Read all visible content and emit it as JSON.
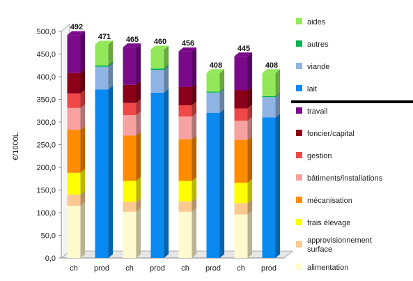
{
  "chart_data": {
    "type": "bar",
    "stacked": true,
    "three_d": true,
    "ylabel": "€/1000L",
    "ylim": [
      0,
      500
    ],
    "ytick_step": 50,
    "ytick_labels": [
      "0,0",
      "50,0",
      "100,0",
      "150,0",
      "200,0",
      "250,0",
      "300,0",
      "350,0",
      "400,0",
      "450,0",
      "500,0"
    ],
    "grid": false,
    "legend_position": "right",
    "categories": [
      "ch",
      "prod",
      "ch",
      "prod",
      "ch",
      "prod",
      "ch",
      "prod"
    ],
    "totals": [
      "492",
      "471",
      "465",
      "460",
      "456",
      "408",
      "445",
      "408"
    ],
    "cost_series": [
      {
        "name": "alimentation",
        "color": "#FFFACD",
        "values": [
          115,
          0,
          102,
          0,
          102,
          0,
          96,
          0
        ]
      },
      {
        "name": "approvisionnement surface",
        "color": "#FAC98F",
        "values": [
          25,
          0,
          22,
          0,
          23,
          0,
          25,
          0
        ]
      },
      {
        "name": "frais élevage",
        "color": "#FFFF00",
        "values": [
          48,
          0,
          46,
          0,
          45,
          0,
          45,
          0
        ]
      },
      {
        "name": "mécanisation",
        "color": "#FF8C00",
        "values": [
          95,
          0,
          100,
          0,
          92,
          0,
          95,
          0
        ]
      },
      {
        "name": "bâtiments/installations",
        "color": "#F7A1A1",
        "values": [
          48,
          0,
          45,
          0,
          50,
          0,
          42,
          0
        ]
      },
      {
        "name": "gestion",
        "color": "#F04848",
        "values": [
          32,
          0,
          27,
          0,
          25,
          0,
          27,
          0
        ]
      },
      {
        "name": "foncier/capital",
        "color": "#8B0018",
        "values": [
          45,
          0,
          40,
          0,
          40,
          0,
          40,
          0
        ]
      },
      {
        "name": "travail",
        "color": "#7B0A8B",
        "values": [
          84,
          0,
          83,
          0,
          79,
          0,
          75,
          0
        ]
      }
    ],
    "product_series": [
      {
        "name": "lait",
        "color": "#0A8AF0",
        "values": [
          0,
          372,
          0,
          365,
          0,
          320,
          0,
          310
        ]
      },
      {
        "name": "viande",
        "color": "#8FB4E3",
        "values": [
          0,
          50,
          0,
          50,
          0,
          45,
          0,
          45
        ]
      },
      {
        "name": "autres",
        "color": "#00B050",
        "values": [
          0,
          3,
          0,
          3,
          0,
          2,
          0,
          2
        ]
      },
      {
        "name": "aides",
        "color": "#92E85A",
        "values": [
          0,
          46,
          0,
          42,
          0,
          41,
          0,
          51
        ]
      }
    ],
    "legend_order": [
      "aides",
      "autres",
      "viande",
      "lait",
      "travail",
      "foncier/capital",
      "gestion",
      "bâtiments/installations",
      "mécanisation",
      "frais élevage",
      "approvisionnement surface",
      "alimentation"
    ]
  }
}
